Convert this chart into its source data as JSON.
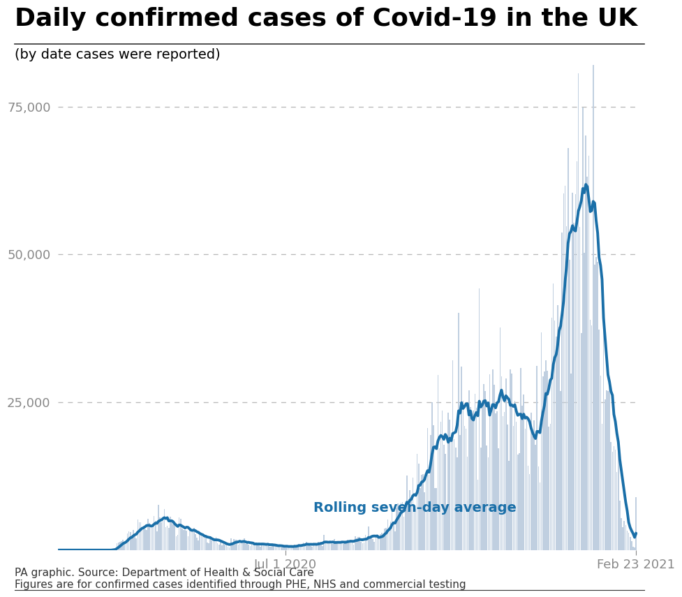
{
  "title": "Daily confirmed cases of Covid-19 in the UK",
  "subtitle": "(by date cases were reported)",
  "ylabel_ticks": [
    25000,
    50000,
    75000
  ],
  "ylabel_labels": [
    "25,000",
    "50,000",
    "75,000"
  ],
  "ylim": [
    0,
    82000
  ],
  "bar_color": "#c0cfe0",
  "line_color": "#1a6fa8",
  "annotation_text": "Rolling seven-day average",
  "annotation_color": "#1a6fa8",
  "xlabel_left": "Jul 1 2020",
  "xlabel_right": "Feb 23 2021",
  "source_text": "PA graphic. Source: Department of Health & Social Care\nFigures are for confirmed cases identified through PHE, NHS and commercial testing",
  "title_fontsize": 26,
  "subtitle_fontsize": 14,
  "tick_fontsize": 13,
  "source_fontsize": 11,
  "annotation_fontsize": 14,
  "xlabel_fontsize": 13,
  "background_color": "#ffffff",
  "grid_color": "#bbbbbb",
  "title_color": "#000000",
  "subtitle_color": "#000000",
  "tick_color": "#888888"
}
